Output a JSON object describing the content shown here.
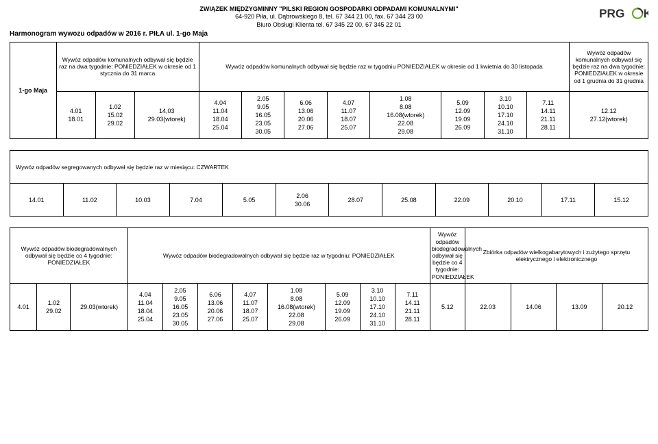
{
  "header": {
    "org": "ZWIĄZEK MIĘDZYGMINNY \"PILSKI REGION GOSPODARKI ODPADAMI KOMUNALNYMI\"",
    "addr": "64-920 Piła, ul. Dąbrowskiego 8, tel. 67 344 21 00, fax. 67 344 23 00",
    "office": "Biuro Obsługi Klienta tel. 67 345 22 00, 67 345 22 01",
    "title": "Harmonogram wywozu odpadów w 2016 r. PIŁA ul. 1-go Maja",
    "logo_text": "PRG",
    "logo_accent": "#6aa832",
    "logo_base": "#333333"
  },
  "tableA": {
    "street": "1-go Maja",
    "h1": "Wywóz odpadów komunalnych odbywał się będzie raz na dwa tygodnie: PONIEDZIAŁEK w okresie od 1 stycznia do 31 marca",
    "h2": "Wywóz odpadów komunalnych odbywał się będzie raz w tygodniu PONIEDZIAŁEK w okresie od 1 kwietnia do 30 listopada",
    "h3": "Wywóz odpadów komunalnych odbywał się będzie raz na dwa tygodnie: PONIEDZIAŁEK w okresie od 1 grudnia do 31 grudnia",
    "c1": "4.01\n18.01",
    "c2": "1.02\n15.02\n29.02",
    "c3": "14,03\n29.03(wtorek)",
    "c4": "4.04\n11.04\n18.04\n25.04",
    "c5": "2.05\n9.05\n16.05\n23.05\n30.05",
    "c6": "6.06\n13.06\n20.06\n27.06",
    "c7": "4.07\n11.07\n18.07\n25.07",
    "c8": "1.08\n8.08\n16.08(wtorek)\n22.08\n29.08",
    "c9": "5.09\n12.09\n19.09\n26.09",
    "c10": "3.10\n10.10\n17.10\n24.10\n31.10",
    "c11": "7.11\n14.11\n21.11\n28.11",
    "c12": "12.12\n27.12(wtorek)"
  },
  "tableB": {
    "h": "Wywóz odpadów segregowanych odbywał się będzie raz w miesiącu: CZWARTEK",
    "c1": "14.01",
    "c2": "11.02",
    "c3": "10.03",
    "c4": "7.04",
    "c5": "5.05",
    "c6": "2.06\n30.06",
    "c7": "28.07",
    "c8": "25.08",
    "c9": "22.09",
    "c10": "20.10",
    "c11": "17.11",
    "c12": "15.12"
  },
  "tableC": {
    "h1": "Wywóz odpadów biodegradowalnych odbywał się będzie co 4 tygodnie: PONIEDZIAŁEK",
    "h2": "Wywóz odpadów biodegradowalnych odbywał się będzie raz w tygodniu: PONIEDZIAŁEK",
    "h3": "Wywóz odpadów biodegradowalnych odbywał się będzie co 4 tygodnie: PONIEDZIAŁEK",
    "h4": "Zbiórka odpadów wielkogabarytowych i zużytego sprzętu elektrycznego i elektronicznego",
    "c1": "4.01",
    "c2": "1.02\n29.02",
    "c3": "29.03(wtorek)",
    "c4": "4.04\n11.04\n18.04\n25.04",
    "c5": "2.05\n9.05\n16.05\n23.05\n30.05",
    "c6": "6.06\n13.06\n20.06\n27.06",
    "c7": "4.07\n11.07\n18.07\n25.07",
    "c8": "1.08\n8.08\n16.08(wtorek)\n22.08\n29.08",
    "c9": "5.09\n12.09\n19.09\n26.09",
    "c10": "3.10\n10.10\n17.10\n24.10\n31.10",
    "c11": "7.11\n14.11\n21.11\n28.11",
    "c12": "5.12",
    "c13": "22.03",
    "c14": "14.06",
    "c15": "13.09",
    "c16": "20.12"
  }
}
